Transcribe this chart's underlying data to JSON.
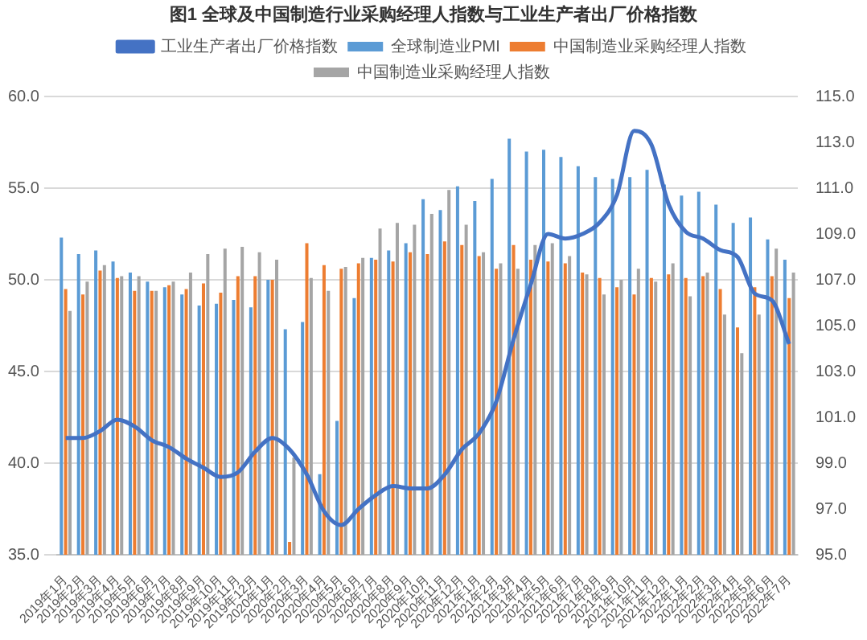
{
  "chart_data": {
    "type": "bar",
    "title": "图1 全球及中国制造行业采购经理人指数与工业生产者出厂价格指数",
    "categories": [
      "2019年1月",
      "2019年2月",
      "2019年3月",
      "2019年4月",
      "2019年5月",
      "2019年6月",
      "2019年7月",
      "2019年8月",
      "2019年9月",
      "2019年10月",
      "2019年11月",
      "2019年12月",
      "2020年1月",
      "2020年2月",
      "2020年3月",
      "2020年4月",
      "2020年5月",
      "2020年6月",
      "2020年7月",
      "2020年8月",
      "2020年9月",
      "2020年10月",
      "2020年11月",
      "2020年12月",
      "2021年1月",
      "2021年2月",
      "2021年3月",
      "2021年4月",
      "2021年5月",
      "2021年6月",
      "2021年7月",
      "2021年8月",
      "2021年9月",
      "2021年10月",
      "2021年11月",
      "2021年12月",
      "2022年1月",
      "2022年2月",
      "2022年3月",
      "2022年4月",
      "2022年5月",
      "2022年6月",
      "2022年7月"
    ],
    "series": [
      {
        "name": "全球制造业PMI",
        "color": "#5b9bd5",
        "values": [
          52.3,
          51.4,
          51.6,
          51.0,
          50.4,
          49.9,
          49.6,
          49.2,
          48.6,
          48.7,
          48.9,
          48.5,
          50.0,
          47.3,
          47.7,
          39.4,
          42.3,
          49.0,
          51.2,
          51.6,
          52.0,
          54.4,
          53.8,
          55.1,
          54.3,
          55.5,
          57.7,
          57.0,
          57.1,
          56.7,
          56.2,
          55.6,
          55.5,
          55.6,
          56.0,
          55.2,
          54.6,
          54.8,
          54.1,
          53.1,
          53.4,
          52.2,
          51.1
        ]
      },
      {
        "name": "中国制造业采购经理人指数",
        "color": "#ed7d31",
        "values": [
          49.5,
          49.2,
          50.5,
          50.1,
          49.4,
          49.4,
          49.7,
          49.5,
          49.8,
          49.3,
          50.2,
          50.2,
          50.0,
          35.7,
          52.0,
          50.8,
          50.6,
          50.9,
          51.1,
          51.0,
          51.5,
          51.4,
          52.1,
          51.9,
          51.3,
          50.6,
          51.9,
          51.1,
          51.0,
          50.9,
          50.4,
          50.1,
          49.6,
          49.2,
          50.1,
          50.3,
          50.1,
          50.2,
          49.5,
          47.4,
          49.6,
          50.2,
          49.0
        ]
      },
      {
        "name": "中国制造业采购经理人指数",
        "color": "#a5a5a5",
        "values": [
          48.3,
          49.9,
          50.8,
          50.2,
          50.2,
          49.4,
          49.9,
          50.4,
          51.4,
          51.7,
          51.8,
          51.5,
          51.1,
          40.3,
          50.1,
          49.4,
          50.7,
          51.2,
          52.8,
          53.1,
          53.0,
          53.6,
          54.9,
          53.0,
          51.5,
          50.9,
          50.6,
          51.9,
          52.0,
          51.3,
          50.3,
          49.2,
          50.0,
          50.6,
          49.9,
          50.9,
          49.1,
          50.4,
          48.1,
          46.0,
          48.1,
          51.7,
          50.4
        ]
      },
      {
        "name": "工业生产者出厂价格指数",
        "type": "line",
        "axis": "y2",
        "color": "#4472c4",
        "values": [
          100.1,
          100.1,
          100.4,
          100.9,
          100.6,
          100.0,
          99.7,
          99.2,
          98.8,
          98.4,
          98.6,
          99.5,
          100.1,
          99.6,
          98.5,
          96.9,
          96.3,
          97.0,
          97.6,
          98.0,
          97.9,
          97.9,
          98.5,
          99.6,
          100.3,
          101.7,
          104.4,
          106.8,
          109.0,
          108.8,
          109.0,
          109.5,
          110.7,
          113.5,
          112.9,
          110.3,
          109.1,
          108.8,
          108.3,
          108.0,
          106.4,
          106.1,
          104.2
        ]
      }
    ],
    "ylim": [
      35,
      60
    ],
    "yticks": [
      {
        "value": 35,
        "label": "35.0"
      },
      {
        "value": 40,
        "label": "40.0"
      },
      {
        "value": 45,
        "label": "45.0"
      },
      {
        "value": 50,
        "label": "50.0"
      },
      {
        "value": 55,
        "label": "55.0"
      },
      {
        "value": 60,
        "label": "60.0"
      }
    ],
    "y2lim": [
      95,
      115
    ],
    "y2ticks": [
      {
        "value": 95,
        "label": "95.0"
      },
      {
        "value": 97,
        "label": "97.0"
      },
      {
        "value": 99,
        "label": "99.0"
      },
      {
        "value": 101,
        "label": "101.0"
      },
      {
        "value": 103,
        "label": "103.0"
      },
      {
        "value": 105,
        "label": "105.0"
      },
      {
        "value": 107,
        "label": "107.0"
      },
      {
        "value": 109,
        "label": "109.0"
      },
      {
        "value": 111,
        "label": "111.0"
      },
      {
        "value": 113,
        "label": "113.0"
      },
      {
        "value": 115,
        "label": "115.0"
      }
    ],
    "grid": "y",
    "legend": "top",
    "marker": "none",
    "line_style": "solid"
  }
}
